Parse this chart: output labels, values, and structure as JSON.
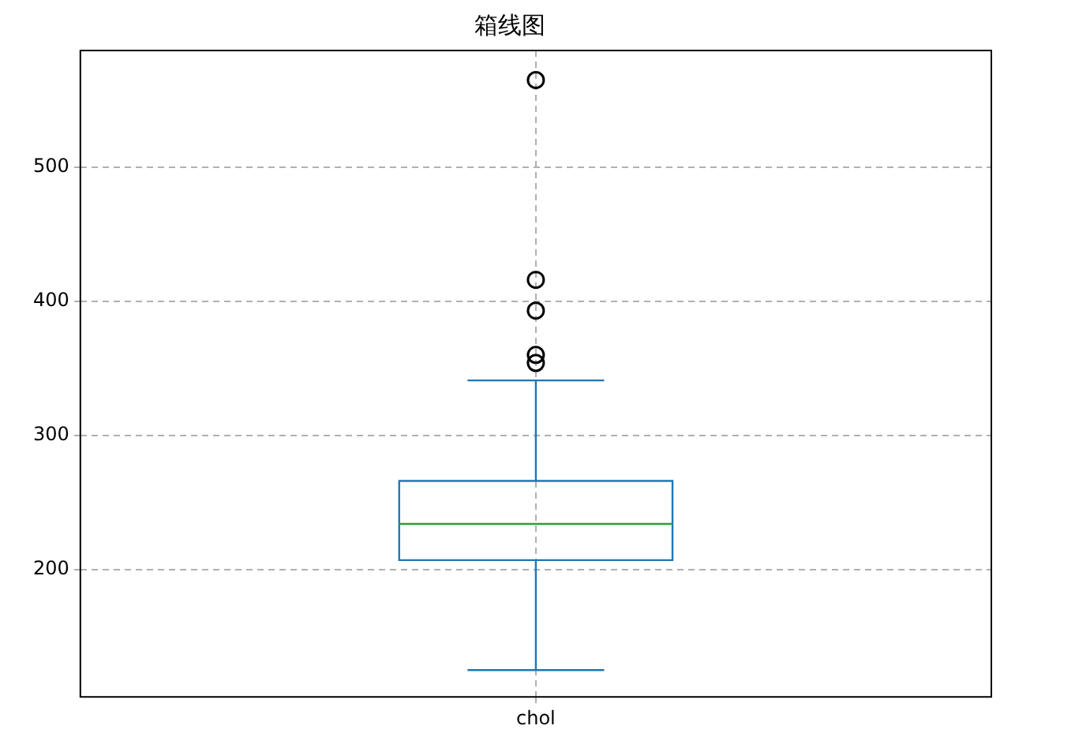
{
  "chart_data": {
    "type": "box",
    "title": "箱线图",
    "categories": [
      "chol"
    ],
    "boxes": [
      {
        "low": 125,
        "q1": 207,
        "median": 234,
        "q3": 266,
        "high": 341,
        "outliers": [
          565,
          416,
          393,
          360,
          354
        ]
      }
    ],
    "color": "#1f77b4",
    "ylim": [
      105,
      587
    ],
    "yticks": [
      200,
      300,
      400,
      500
    ],
    "grid": true
  }
}
